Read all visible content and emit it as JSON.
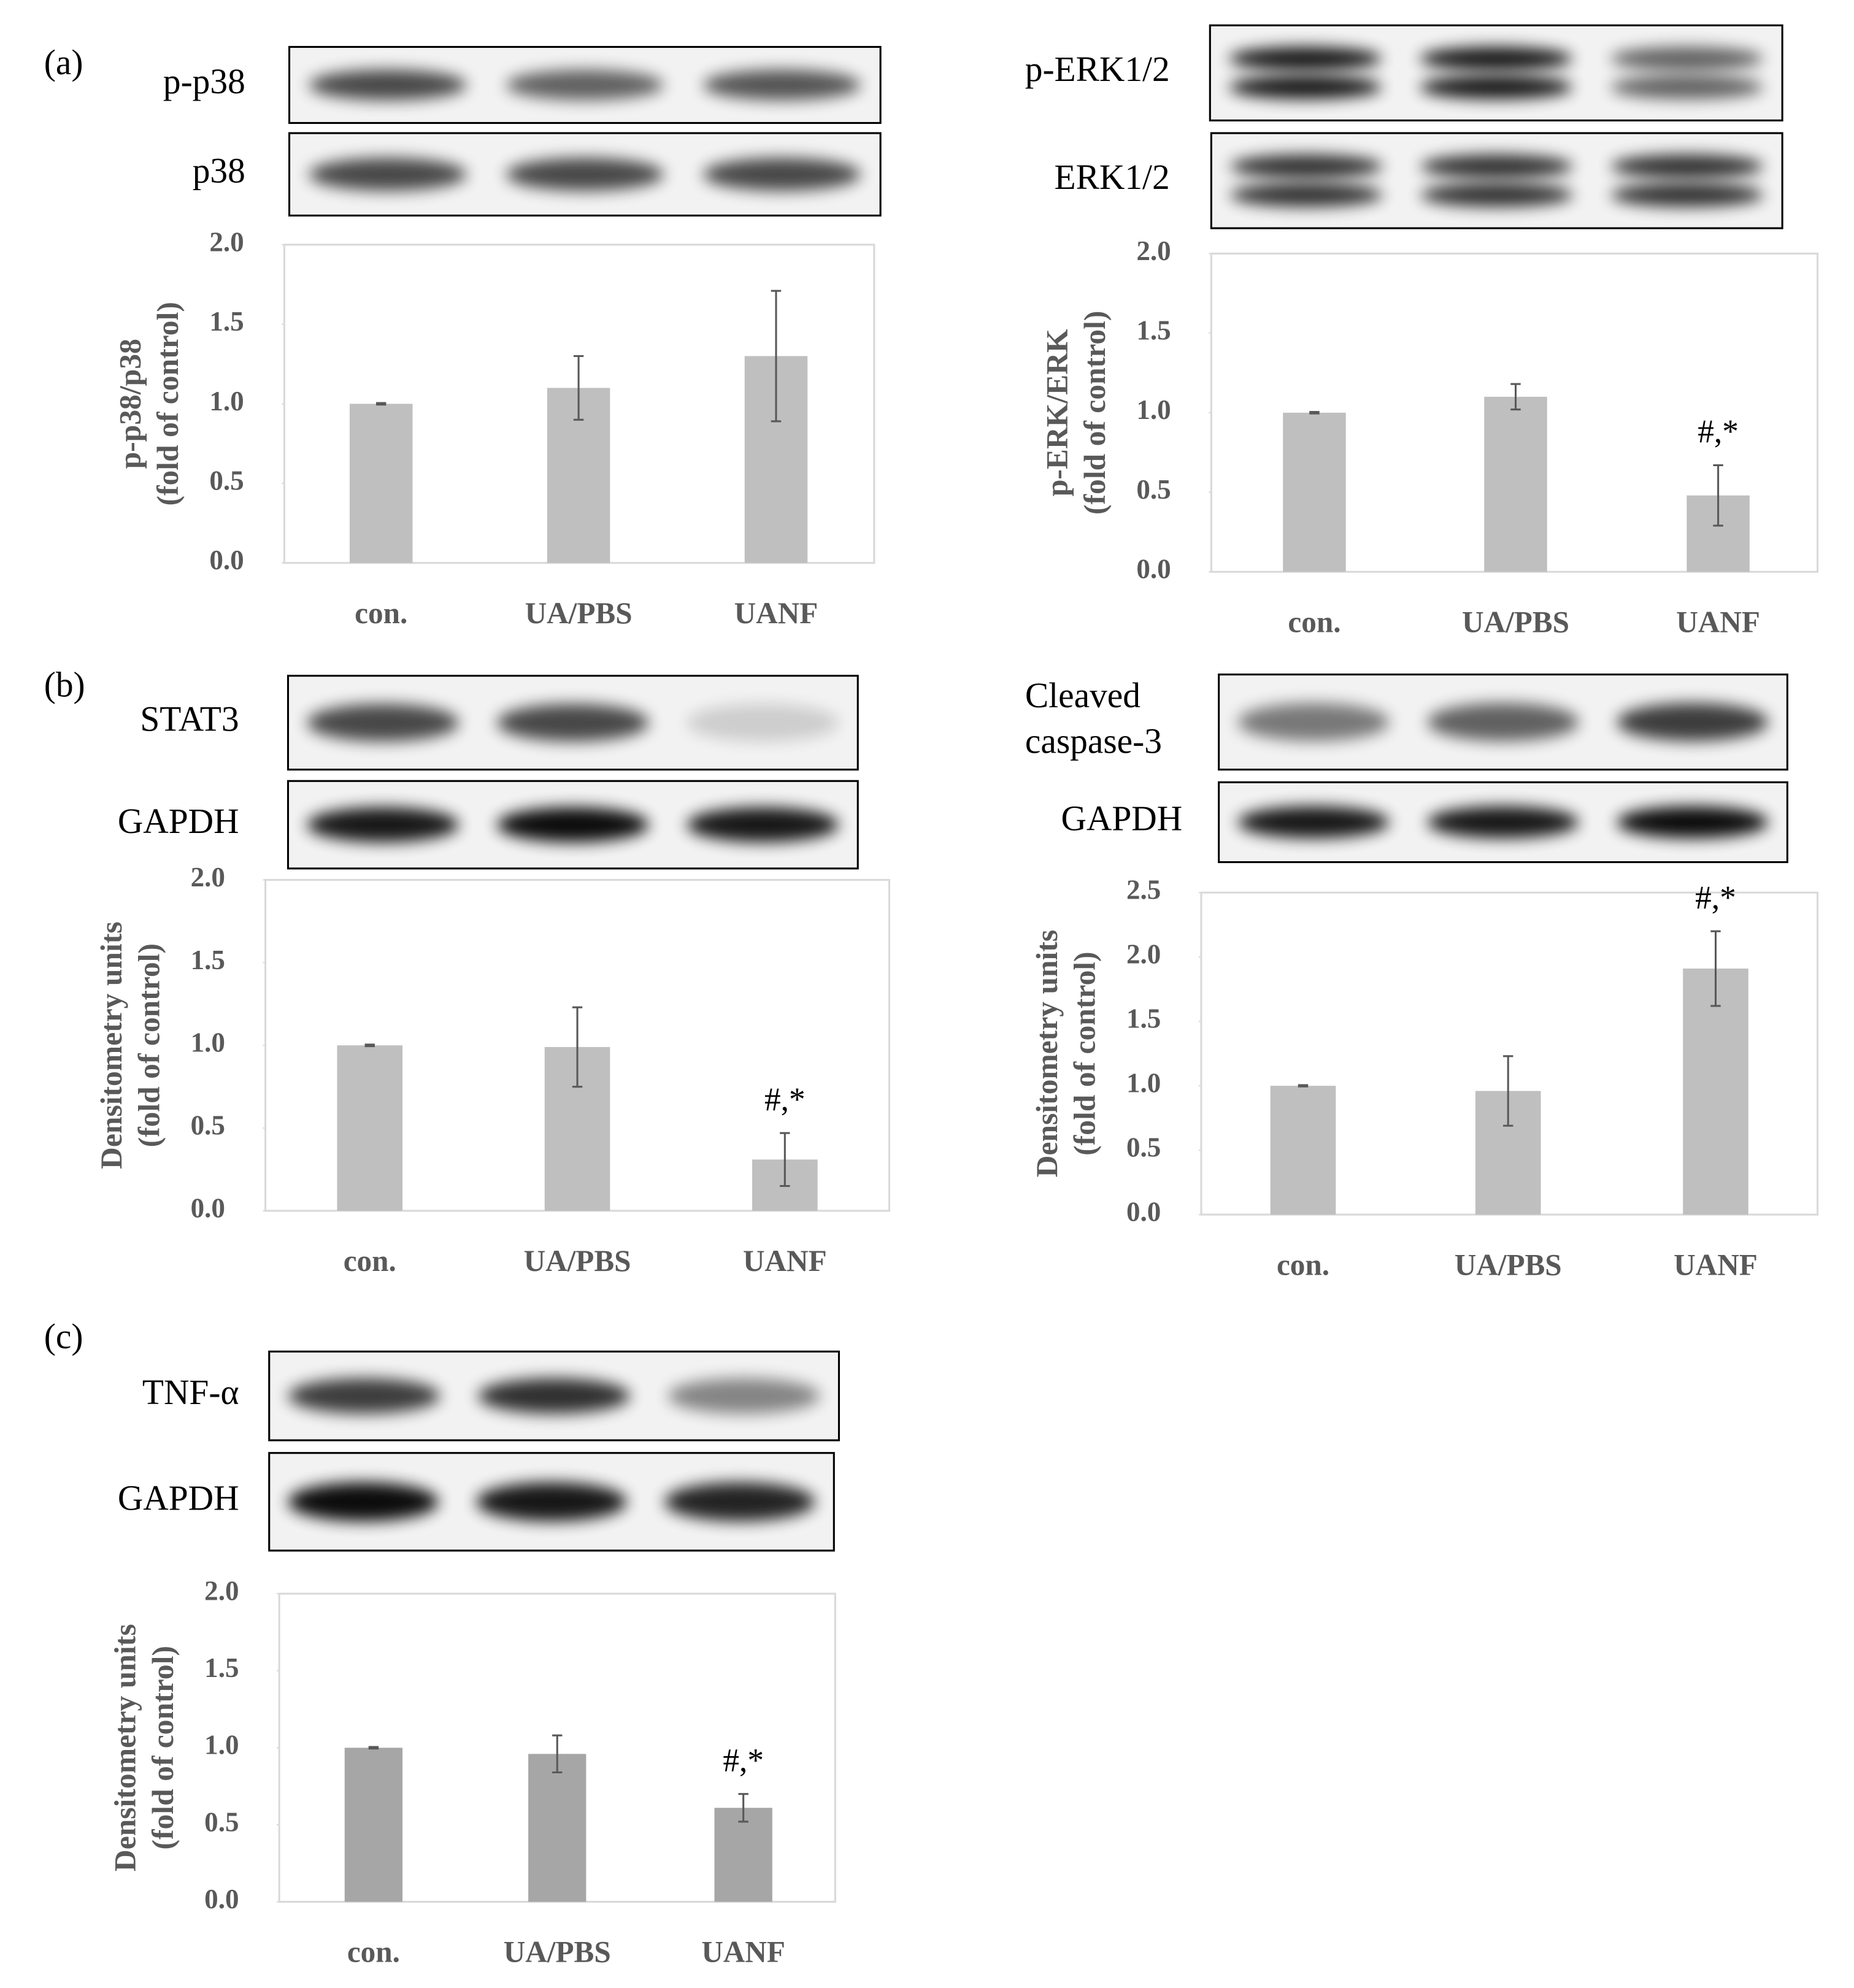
{
  "chart_data": [
    {
      "type": "bar",
      "panel": "(a)",
      "blots": [
        [
          "p-p38"
        ],
        [
          "p38"
        ]
      ],
      "y_label": [
        "p-p38/p38",
        "(fold of control)"
      ],
      "categories": [
        "con.",
        "UA/PBS",
        "UANF"
      ],
      "values": [
        1.0,
        1.1,
        1.3
      ],
      "errors": [
        0.005,
        0.2,
        0.41
      ],
      "color": "#bfbfbf",
      "ylim": [
        0,
        2
      ],
      "yticks": [
        {
          "value": 0,
          "label": "0.0"
        },
        {
          "value": 0.5,
          "label": "0.5"
        },
        {
          "value": 1,
          "label": "1.0"
        },
        {
          "value": 1.5,
          "label": "1.5"
        },
        {
          "value": 2,
          "label": "2.0"
        }
      ],
      "annotations": []
    },
    {
      "type": "bar",
      "blots": [
        [
          "p-ERK1/2"
        ],
        [
          "ERK1/2"
        ]
      ],
      "y_label": [
        "p-ERK/ERK",
        "(fold of control)"
      ],
      "categories": [
        "con.",
        "UA/PBS",
        "UANF"
      ],
      "values": [
        1.0,
        1.1,
        0.48
      ],
      "errors": [
        0.005,
        0.08,
        0.19
      ],
      "color": "#bfbfbf",
      "ylim": [
        0,
        2
      ],
      "yticks": [
        {
          "value": 0,
          "label": "0.0"
        },
        {
          "value": 0.5,
          "label": "0.5"
        },
        {
          "value": 1,
          "label": "1.0"
        },
        {
          "value": 1.5,
          "label": "1.5"
        },
        {
          "value": 2,
          "label": "2.0"
        }
      ],
      "annotations": [
        {
          "category": "UANF",
          "text": "#,*"
        }
      ]
    },
    {
      "type": "bar",
      "panel": "(b)",
      "blots": [
        [
          "STAT3"
        ],
        [
          "GAPDH"
        ]
      ],
      "y_label": [
        "Densitometry units",
        "(fold of control)"
      ],
      "categories": [
        "con.",
        "UA/PBS",
        "UANF"
      ],
      "values": [
        1.0,
        0.99,
        0.31
      ],
      "errors": [
        0.005,
        0.24,
        0.16
      ],
      "color": "#bfbfbf",
      "ylim": [
        0,
        2
      ],
      "yticks": [
        {
          "value": 0,
          "label": "0.0"
        },
        {
          "value": 0.5,
          "label": "0.5"
        },
        {
          "value": 1,
          "label": "1.0"
        },
        {
          "value": 1.5,
          "label": "1.5"
        },
        {
          "value": 2,
          "label": "2.0"
        }
      ],
      "annotations": [
        {
          "category": "UANF",
          "text": "#,*"
        }
      ]
    },
    {
      "type": "bar",
      "blots": [
        [
          "Cleaved",
          "caspase-3"
        ],
        [
          "GAPDH"
        ]
      ],
      "y_label": [
        "Densitometry units",
        "(fold of control)"
      ],
      "categories": [
        "con.",
        "UA/PBS",
        "UANF"
      ],
      "values": [
        1.0,
        0.96,
        1.91
      ],
      "errors": [
        0.005,
        0.27,
        0.29
      ],
      "color": "#bfbfbf",
      "ylim": [
        0,
        2.5
      ],
      "yticks": [
        {
          "value": 0,
          "label": "0.0"
        },
        {
          "value": 0.5,
          "label": "0.5"
        },
        {
          "value": 1,
          "label": "1.0"
        },
        {
          "value": 1.5,
          "label": "1.5"
        },
        {
          "value": 2,
          "label": "2.0"
        },
        {
          "value": 2.5,
          "label": "2.5"
        }
      ],
      "annotations": [
        {
          "category": "UANF",
          "text": "#,*"
        }
      ]
    },
    {
      "type": "bar",
      "panel": "(c)",
      "blots": [
        [
          "TNF-α"
        ],
        [
          "GAPDH"
        ]
      ],
      "y_label": [
        "Densitometry units",
        "(fold of control)"
      ],
      "categories": [
        "con.",
        "UA/PBS",
        "UANF"
      ],
      "values": [
        1.0,
        0.96,
        0.61
      ],
      "errors": [
        0.005,
        0.12,
        0.09
      ],
      "color": "#a6a6a6",
      "ylim": [
        0,
        2
      ],
      "yticks": [
        {
          "value": 0,
          "label": "0.0"
        },
        {
          "value": 0.5,
          "label": "0.5"
        },
        {
          "value": 1,
          "label": "1.0"
        },
        {
          "value": 1.5,
          "label": "1.5"
        },
        {
          "value": 2,
          "label": "2.0"
        }
      ],
      "annotations": [
        {
          "category": "UANF",
          "text": "#,*"
        }
      ]
    }
  ]
}
